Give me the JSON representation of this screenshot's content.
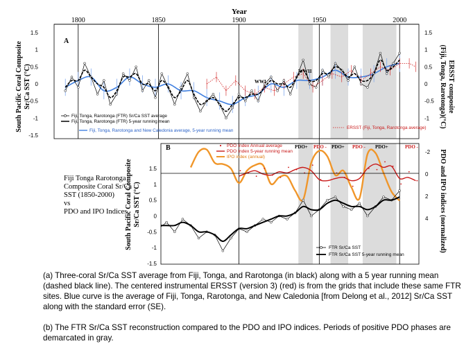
{
  "figure": {
    "top_axis_title": "Year",
    "years": [
      "1800",
      "1850",
      "1900",
      "1950",
      "2000"
    ],
    "panel_a": {
      "label": "A",
      "ylabel_lines": [
        "South Pacific Coral Composite",
        "Sr/Ca SST (°C)"
      ],
      "yticks_left": [
        "1.5",
        "1",
        "0.5",
        "0",
        "-0.5",
        "-1",
        "-1.5"
      ],
      "yticks_right": [
        "1.5",
        "1",
        "0.5",
        "0",
        "-0.5",
        "-1"
      ],
      "ylabel_right_lines": [
        "ERSST composite",
        "(Fiji, Tonga, Rarotonga)(°C)"
      ],
      "legend": [
        "Fiji, Tonga, Rarotonga (FTR) Sr/Ca SST average",
        "Fiji, Tonga, Rarotonga (FTR) 5-year running mean",
        "Fiji, Tonga, Rarotonga and New Caledonia average, 5-year running mean"
      ],
      "ersst_label": "ERSST (Fiji, Tonga, Rarotonga average)",
      "annotations": [
        "WWI",
        "WWII"
      ]
    },
    "panel_b": {
      "label": "B",
      "ylabel_lines": [
        "South Pacific Coral Composite",
        "Sr/Ca SST (°C)"
      ],
      "yticks_left": [
        "1.5",
        "1",
        "0.5",
        "0",
        "-0.5",
        "-1",
        "-1.5"
      ],
      "yticks_right": [
        "-2",
        "0",
        "2",
        "4"
      ],
      "ylabel_right": "PDO and IPO indices (normalized)",
      "legend_top": [
        "PDO Index Annual average",
        "PDO Index 5-year running mean",
        "IPO index (annual)"
      ],
      "legend_bottom": [
        "FTR Sr/Ca SST",
        "FTR Sr/Ca SST 5-year running mean"
      ],
      "phases": [
        "PDO+",
        "PDO -",
        "PDO+",
        "PDO -",
        "PDO+",
        "PDO -"
      ]
    },
    "side_note_lines": [
      "Fiji Tonga Rarotonga",
      "Composite Coral Sr/Ca",
      "SST (1850-2000)",
      "vs",
      "PDO and IPO Indices"
    ]
  },
  "caption_a": "(a) Three-coral Sr/Ca SST average from Fiji, Tonga, and Rarotonga (in black) along with a 5 year running mean (dashed black line). The centered instrumental ERSST (version 3) (red) is from the grids that include these same FTR sites. Blue curve is the average of Fiji, Tonga, Rarotonga, and New Caledonia [from Delong et al., 2012] Sr/Ca SST along with the standard error (SE).",
  "caption_b": "(b) The FTR Sr/Ca SST reconstruction compared to the PDO and IPO indices. Periods of positive PDO phases are demarcated in gray.",
  "chart_data": [
    {
      "type": "line",
      "panel": "A",
      "xlabel": "Year",
      "ylabel": "South Pacific Coral Composite Sr/Ca SST (°C)",
      "xlim": [
        1785,
        2012
      ],
      "ylim": [
        -1.5,
        1.5
      ],
      "y2lim": [
        -1.5,
        1.5
      ],
      "grid": false,
      "shaded_periods": [
        [
          1937,
          1946
        ],
        [
          1957,
          1968
        ],
        [
          1977,
          1998
        ]
      ],
      "series": [
        {
          "name": "Fiji, Tonga, Rarotonga (FTR) Sr/Ca SST average",
          "x": [
            1792,
            1796,
            1800,
            1804,
            1808,
            1812,
            1816,
            1820,
            1824,
            1828,
            1832,
            1836,
            1840,
            1844,
            1848,
            1852,
            1856,
            1860,
            1864,
            1868,
            1872,
            1876,
            1880,
            1884,
            1888,
            1892,
            1896,
            1900,
            1904,
            1908,
            1912,
            1916,
            1920,
            1924,
            1928,
            1932,
            1936,
            1940,
            1944,
            1948,
            1952,
            1956,
            1960,
            1964,
            1968,
            1972,
            1976,
            1980,
            1984,
            1988,
            1992,
            1996,
            2000
          ],
          "y": [
            -0.2,
            0.2,
            -0.1,
            0.6,
            0.2,
            -0.3,
            0.1,
            -0.6,
            -0.3,
            0.3,
            0.1,
            0.5,
            -0.2,
            0.1,
            -0.4,
            0.3,
            -0.1,
            -0.6,
            -0.1,
            0.3,
            -0.4,
            -0.8,
            -0.5,
            -0.3,
            -0.6,
            -1.0,
            -0.7,
            -0.3,
            -0.5,
            -0.2,
            -0.5,
            0.0,
            0.2,
            -0.2,
            0.1,
            -0.3,
            0.2,
            0.7,
            0.0,
            -0.1,
            0.4,
            0.2,
            0.6,
            0.4,
            0.1,
            0.5,
            0.0,
            -0.1,
            0.3,
            0.9,
            0.3,
            0.6,
            0.9
          ]
        },
        {
          "name": "Fiji, Tonga, Rarotonga (FTR) 5-year running mean",
          "x": [
            1792,
            1796,
            1800,
            1804,
            1808,
            1812,
            1816,
            1820,
            1824,
            1828,
            1832,
            1836,
            1840,
            1844,
            1848,
            1852,
            1856,
            1860,
            1864,
            1868,
            1872,
            1876,
            1880,
            1884,
            1888,
            1892,
            1896,
            1900,
            1904,
            1908,
            1912,
            1916,
            1920,
            1924,
            1928,
            1932,
            1936,
            1940,
            1944,
            1948,
            1952,
            1956,
            1960,
            1964,
            1968,
            1972,
            1976,
            1980,
            1984,
            1988,
            1992,
            1996,
            2000
          ],
          "y": [
            -0.1,
            0.1,
            0.1,
            0.4,
            0.2,
            0.0,
            -0.1,
            -0.4,
            -0.2,
            0.2,
            0.2,
            0.3,
            0.0,
            0.0,
            -0.2,
            0.1,
            -0.1,
            -0.4,
            -0.2,
            0.1,
            -0.3,
            -0.6,
            -0.5,
            -0.4,
            -0.6,
            -0.8,
            -0.6,
            -0.4,
            -0.4,
            -0.3,
            -0.3,
            -0.1,
            0.1,
            0.0,
            0.0,
            -0.1,
            0.2,
            0.4,
            0.1,
            0.1,
            0.3,
            0.3,
            0.5,
            0.4,
            0.2,
            0.3,
            0.1,
            0.1,
            0.3,
            0.7,
            0.4,
            0.5,
            0.7
          ]
        },
        {
          "name": "Fiji, Tonga, Rarotonga and New Caledonia average, 5-year running mean",
          "x": [
            1792,
            1800,
            1808,
            1816,
            1824,
            1832,
            1840,
            1848,
            1856,
            1864,
            1872,
            1880,
            1888,
            1896,
            1904,
            1912,
            1920,
            1928,
            1936,
            1944,
            1952,
            1960,
            1968,
            1976,
            1984,
            1992,
            2000
          ],
          "y": [
            -0.1,
            0.1,
            0.2,
            -0.2,
            -0.1,
            0.2,
            0.0,
            -0.1,
            0.0,
            -0.2,
            -0.2,
            -0.4,
            -0.5,
            -0.6,
            -0.4,
            -0.3,
            0.0,
            -0.1,
            0.1,
            0.1,
            0.2,
            0.4,
            0.2,
            0.2,
            0.3,
            0.5,
            0.6
          ]
        },
        {
          "name": "ERSST (Fiji, Tonga, Rarotonga average)",
          "x": [
            1880,
            1886,
            1892,
            1898,
            1904,
            1910,
            1916,
            1922,
            1928,
            1934,
            1940,
            1946,
            1952,
            1958,
            1964,
            1970,
            1976,
            1982,
            1988,
            1994,
            2000,
            2006,
            2010
          ],
          "y": [
            0.0,
            0.2,
            -0.2,
            0.1,
            -0.2,
            -0.3,
            -0.1,
            -0.2,
            0.0,
            0.2,
            0.3,
            -0.1,
            0.1,
            0.3,
            0.2,
            0.4,
            0.1,
            0.3,
            0.5,
            0.4,
            0.6,
            0.6,
            0.5
          ]
        }
      ]
    },
    {
      "type": "line",
      "panel": "B",
      "xlabel": "Year",
      "ylabel": "South Pacific Coral Composite Sr/Ca SST (°C)",
      "y2label": "PDO and IPO indices (normalized)",
      "xlim": [
        1785,
        2012
      ],
      "ylim": [
        -1.5,
        2.0
      ],
      "y2lim": [
        -2.6,
        5.6
      ],
      "y2_inverted": true,
      "grid": false,
      "shaded_periods": [
        [
          1937,
          1946
        ],
        [
          1957,
          1968
        ],
        [
          1977,
          1998
        ]
      ],
      "series": [
        {
          "name": "FTR Sr/Ca SST",
          "x": [
            1850,
            1855,
            1860,
            1865,
            1870,
            1875,
            1880,
            1885,
            1890,
            1895,
            1900,
            1905,
            1910,
            1915,
            1920,
            1925,
            1930,
            1935,
            1940,
            1945,
            1950,
            1955,
            1960,
            1965,
            1970,
            1975,
            1980,
            1985,
            1990,
            1995,
            2000
          ],
          "y": [
            -0.4,
            -0.2,
            -0.5,
            -0.1,
            -0.3,
            -0.7,
            -0.5,
            -0.6,
            -1.1,
            -0.7,
            -0.4,
            -0.5,
            -0.3,
            -0.1,
            -0.2,
            0.0,
            -0.1,
            0.1,
            0.5,
            0.0,
            0.2,
            0.5,
            0.6,
            0.3,
            0.2,
            0.4,
            0.0,
            0.3,
            0.6,
            0.5,
            0.8
          ]
        },
        {
          "name": "FTR Sr/Ca SST 5-year running mean",
          "x": [
            1850,
            1855,
            1860,
            1865,
            1870,
            1875,
            1880,
            1885,
            1890,
            1895,
            1900,
            1905,
            1910,
            1915,
            1920,
            1925,
            1930,
            1935,
            1940,
            1945,
            1950,
            1955,
            1960,
            1965,
            1970,
            1975,
            1980,
            1985,
            1990,
            1995,
            2000
          ],
          "y": [
            -0.3,
            -0.3,
            -0.3,
            -0.2,
            -0.3,
            -0.5,
            -0.5,
            -0.6,
            -0.8,
            -0.6,
            -0.4,
            -0.4,
            -0.3,
            -0.2,
            -0.1,
            0.0,
            0.0,
            0.1,
            0.3,
            0.2,
            0.2,
            0.4,
            0.5,
            0.4,
            0.3,
            0.3,
            0.2,
            0.3,
            0.5,
            0.5,
            0.6
          ]
        },
        {
          "name": "PDO Index 5-year running mean",
          "axis": "right",
          "x": [
            1900,
            1905,
            1910,
            1915,
            1920,
            1925,
            1930,
            1935,
            1940,
            1945,
            1950,
            1955,
            1960,
            1965,
            1970,
            1975,
            1980,
            1985,
            1990,
            1995,
            2000,
            2005,
            2010
          ],
          "y": [
            0.2,
            -0.1,
            -0.3,
            0.0,
            0.1,
            -0.2,
            -0.1,
            -0.4,
            -0.6,
            -0.3,
            0.5,
            0.6,
            0.4,
            0.3,
            0.6,
            0.4,
            -0.5,
            -0.9,
            -0.6,
            -0.7,
            0.4,
            0.3,
            0.6
          ]
        },
        {
          "name": "IPO index (annual)",
          "axis": "right",
          "x": [
            1870,
            1875,
            1880,
            1885,
            1890,
            1895,
            1900,
            1905,
            1910,
            1915,
            1920,
            1925,
            1930,
            1935,
            1940,
            1945,
            1950,
            1955,
            1960,
            1965,
            1970,
            1975,
            1980,
            1985,
            1990,
            1995,
            2000
          ],
          "y": [
            -0.6,
            -2.0,
            -2.2,
            -1.0,
            -0.9,
            -0.5,
            0.8,
            -0.3,
            -0.8,
            -0.8,
            0.9,
            0.3,
            0.2,
            1.5,
            2.3,
            -1.0,
            -2.1,
            -1.6,
            0.1,
            -0.3,
            1.2,
            2.2,
            -1.8,
            -1.9,
            -0.1,
            1.6,
            2.4
          ]
        }
      ]
    }
  ]
}
